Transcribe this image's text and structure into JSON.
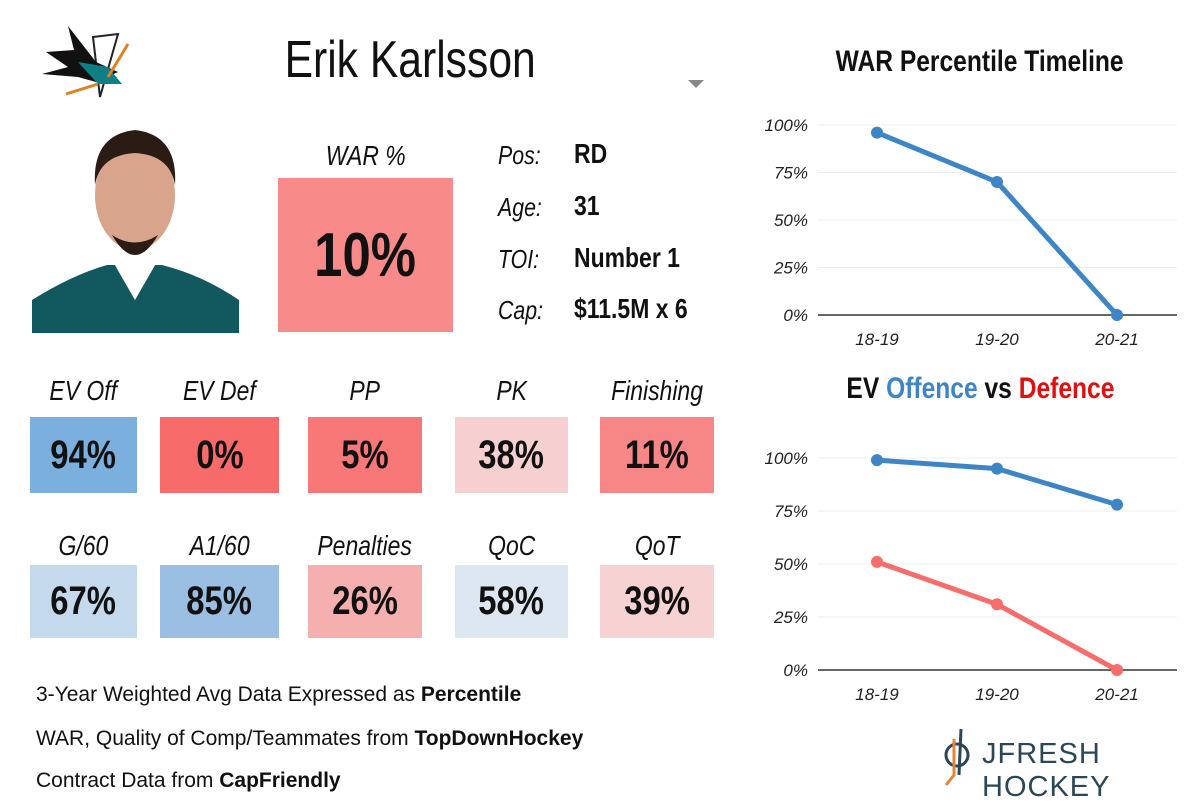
{
  "player": {
    "name": "Erik Karlsson",
    "team_logo": "san-jose-sharks-logo"
  },
  "war": {
    "label": "WAR %",
    "value": "10%",
    "color": "#f88a8a"
  },
  "info": [
    {
      "label": "Pos:",
      "value": "RD"
    },
    {
      "label": "Age:",
      "value": "31"
    },
    {
      "label": "TOI:",
      "value": "Number 1"
    },
    {
      "label": "Cap:",
      "value": "$11.5M x 6"
    }
  ],
  "tiles": [
    {
      "label": "EV Off",
      "value": "94%",
      "color": "#7bb0de"
    },
    {
      "label": "EV Def",
      "value": "0%",
      "color": "#f76b6b"
    },
    {
      "label": "PP",
      "value": "5%",
      "color": "#f87777"
    },
    {
      "label": "PK",
      "value": "38%",
      "color": "#f6d0d0"
    },
    {
      "label": "Finishing",
      "value": "11%",
      "color": "#f78787"
    },
    {
      "label": "G/60",
      "value": "67%",
      "color": "#c5d9ec"
    },
    {
      "label": "A1/60",
      "value": "85%",
      "color": "#9bbfe2"
    },
    {
      "label": "Penalties",
      "value": "26%",
      "color": "#f5afaf"
    },
    {
      "label": "QoC",
      "value": "58%",
      "color": "#dde7f1"
    },
    {
      "label": "QoT",
      "value": "39%",
      "color": "#f6d2d2"
    }
  ],
  "footer": [
    {
      "text": "3-Year Weighted Avg Data Expressed as ",
      "bold": "Percentile"
    },
    {
      "text": "WAR, Quality of Comp/Teammates from ",
      "bold": "TopDownHockey"
    },
    {
      "text": "Contract Data from ",
      "bold": "CapFriendly"
    }
  ],
  "brand": {
    "text": "JFRESH HOCKEY"
  },
  "chart_data": [
    {
      "type": "line",
      "title": "WAR Percentile Timeline",
      "categories": [
        "18-19",
        "19-20",
        "20-21"
      ],
      "series": [
        {
          "values": [
            96,
            70,
            0
          ],
          "color": "#3d85c6"
        }
      ],
      "ylim": [
        0,
        100
      ],
      "yticks": [
        "0%",
        "25%",
        "50%",
        "75%",
        "100%"
      ],
      "grid": true
    },
    {
      "type": "line",
      "title_parts": {
        "a": "EV ",
        "b": "Offence",
        "c": " vs ",
        "d": "Defence"
      },
      "title_colors": {
        "offence": "#3d85c6",
        "defence": "#e01010"
      },
      "categories": [
        "18-19",
        "19-20",
        "20-21"
      ],
      "series": [
        {
          "values": [
            99,
            95,
            78
          ],
          "color": "#3d85c6"
        },
        {
          "values": [
            51,
            31,
            0
          ],
          "color": "#f86c6c"
        }
      ],
      "ylim": [
        0,
        100
      ],
      "yticks": [
        "0%",
        "25%",
        "50%",
        "75%",
        "100%"
      ],
      "grid": true
    }
  ]
}
